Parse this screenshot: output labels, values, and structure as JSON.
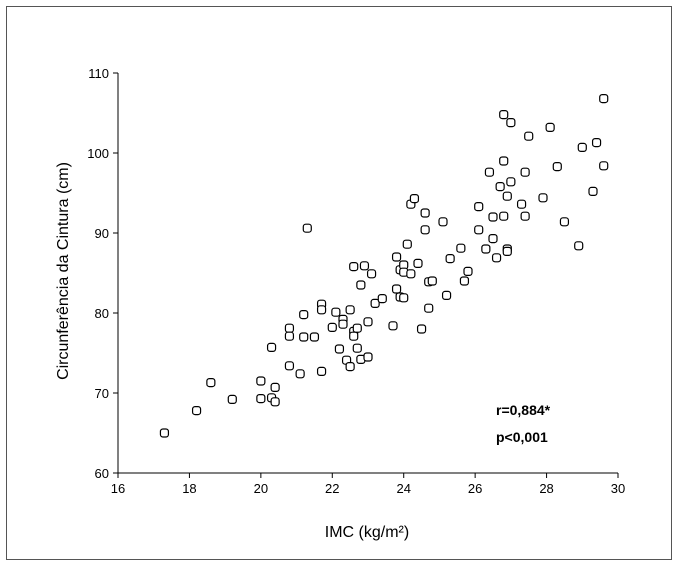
{
  "colors": {
    "marker_stroke": "#000000",
    "axis": "#000000",
    "frame": "#555555"
  },
  "chart_data": {
    "type": "scatter",
    "title": "",
    "xlabel": "IMC (kg/m²)",
    "ylabel": "Circunferência da Cintura (cm)",
    "xlim": [
      16,
      30
    ],
    "ylim": [
      60,
      110
    ],
    "xticks": [
      "16",
      "18",
      "20",
      "22",
      "24",
      "26",
      "28",
      "30"
    ],
    "yticks": [
      "60",
      "70",
      "80",
      "90",
      "100",
      "110"
    ],
    "grid": false,
    "marker": "rounded-square",
    "annotations": [
      "r=0,884*",
      "p<0,001"
    ],
    "points": [
      {
        "x": 17.3,
        "y": 65.0
      },
      {
        "x": 18.2,
        "y": 67.8
      },
      {
        "x": 18.6,
        "y": 71.3
      },
      {
        "x": 19.2,
        "y": 69.2
      },
      {
        "x": 20.0,
        "y": 71.5
      },
      {
        "x": 20.0,
        "y": 69.3
      },
      {
        "x": 20.3,
        "y": 69.4
      },
      {
        "x": 20.3,
        "y": 75.7
      },
      {
        "x": 20.4,
        "y": 70.7
      },
      {
        "x": 20.4,
        "y": 68.9
      },
      {
        "x": 20.8,
        "y": 78.1
      },
      {
        "x": 20.8,
        "y": 77.1
      },
      {
        "x": 20.8,
        "y": 73.4
      },
      {
        "x": 21.1,
        "y": 72.4
      },
      {
        "x": 21.2,
        "y": 79.8
      },
      {
        "x": 21.2,
        "y": 77.0
      },
      {
        "x": 21.3,
        "y": 90.6
      },
      {
        "x": 21.5,
        "y": 77.0
      },
      {
        "x": 21.7,
        "y": 81.1
      },
      {
        "x": 21.7,
        "y": 80.4
      },
      {
        "x": 21.7,
        "y": 72.7
      },
      {
        "x": 22.0,
        "y": 78.2
      },
      {
        "x": 22.1,
        "y": 80.1
      },
      {
        "x": 22.2,
        "y": 75.5
      },
      {
        "x": 22.3,
        "y": 79.2
      },
      {
        "x": 22.3,
        "y": 78.6
      },
      {
        "x": 22.4,
        "y": 74.1
      },
      {
        "x": 22.5,
        "y": 80.4
      },
      {
        "x": 22.5,
        "y": 73.3
      },
      {
        "x": 22.6,
        "y": 85.8
      },
      {
        "x": 22.6,
        "y": 77.7
      },
      {
        "x": 22.6,
        "y": 77.1
      },
      {
        "x": 22.7,
        "y": 78.1
      },
      {
        "x": 22.7,
        "y": 75.6
      },
      {
        "x": 22.8,
        "y": 83.5
      },
      {
        "x": 22.8,
        "y": 74.2
      },
      {
        "x": 22.9,
        "y": 85.9
      },
      {
        "x": 23.0,
        "y": 78.9
      },
      {
        "x": 23.0,
        "y": 74.5
      },
      {
        "x": 23.1,
        "y": 84.9
      },
      {
        "x": 23.2,
        "y": 81.2
      },
      {
        "x": 23.4,
        "y": 81.8
      },
      {
        "x": 23.7,
        "y": 78.4
      },
      {
        "x": 23.8,
        "y": 87.0
      },
      {
        "x": 23.8,
        "y": 83.0
      },
      {
        "x": 23.9,
        "y": 85.4
      },
      {
        "x": 23.9,
        "y": 82.0
      },
      {
        "x": 24.0,
        "y": 86.0
      },
      {
        "x": 24.0,
        "y": 85.1
      },
      {
        "x": 24.0,
        "y": 81.9
      },
      {
        "x": 24.1,
        "y": 88.6
      },
      {
        "x": 24.2,
        "y": 93.6
      },
      {
        "x": 24.2,
        "y": 84.9
      },
      {
        "x": 24.3,
        "y": 94.3
      },
      {
        "x": 24.4,
        "y": 86.2
      },
      {
        "x": 24.5,
        "y": 78.0
      },
      {
        "x": 24.6,
        "y": 92.5
      },
      {
        "x": 24.6,
        "y": 90.4
      },
      {
        "x": 24.7,
        "y": 83.9
      },
      {
        "x": 24.7,
        "y": 80.6
      },
      {
        "x": 24.8,
        "y": 84.0
      },
      {
        "x": 25.1,
        "y": 91.4
      },
      {
        "x": 25.2,
        "y": 82.2
      },
      {
        "x": 25.3,
        "y": 86.8
      },
      {
        "x": 25.6,
        "y": 88.1
      },
      {
        "x": 25.7,
        "y": 84.0
      },
      {
        "x": 25.8,
        "y": 85.2
      },
      {
        "x": 26.1,
        "y": 93.3
      },
      {
        "x": 26.1,
        "y": 90.4
      },
      {
        "x": 26.3,
        "y": 88.0
      },
      {
        "x": 26.4,
        "y": 97.6
      },
      {
        "x": 26.5,
        "y": 92.0
      },
      {
        "x": 26.5,
        "y": 89.3
      },
      {
        "x": 26.6,
        "y": 86.9
      },
      {
        "x": 26.7,
        "y": 95.8
      },
      {
        "x": 26.8,
        "y": 104.8
      },
      {
        "x": 26.8,
        "y": 92.1
      },
      {
        "x": 26.8,
        "y": 99.0
      },
      {
        "x": 26.9,
        "y": 94.6
      },
      {
        "x": 26.9,
        "y": 88.0
      },
      {
        "x": 26.9,
        "y": 87.7
      },
      {
        "x": 27.0,
        "y": 96.4
      },
      {
        "x": 27.0,
        "y": 103.8
      },
      {
        "x": 27.3,
        "y": 93.6
      },
      {
        "x": 27.4,
        "y": 92.1
      },
      {
        "x": 27.4,
        "y": 97.6
      },
      {
        "x": 27.5,
        "y": 102.1
      },
      {
        "x": 27.9,
        "y": 94.4
      },
      {
        "x": 28.1,
        "y": 103.2
      },
      {
        "x": 28.3,
        "y": 98.3
      },
      {
        "x": 28.5,
        "y": 91.4
      },
      {
        "x": 28.9,
        "y": 88.4
      },
      {
        "x": 29.0,
        "y": 100.7
      },
      {
        "x": 29.3,
        "y": 95.2
      },
      {
        "x": 29.4,
        "y": 101.3
      },
      {
        "x": 29.6,
        "y": 98.4
      },
      {
        "x": 29.6,
        "y": 106.8
      }
    ]
  }
}
